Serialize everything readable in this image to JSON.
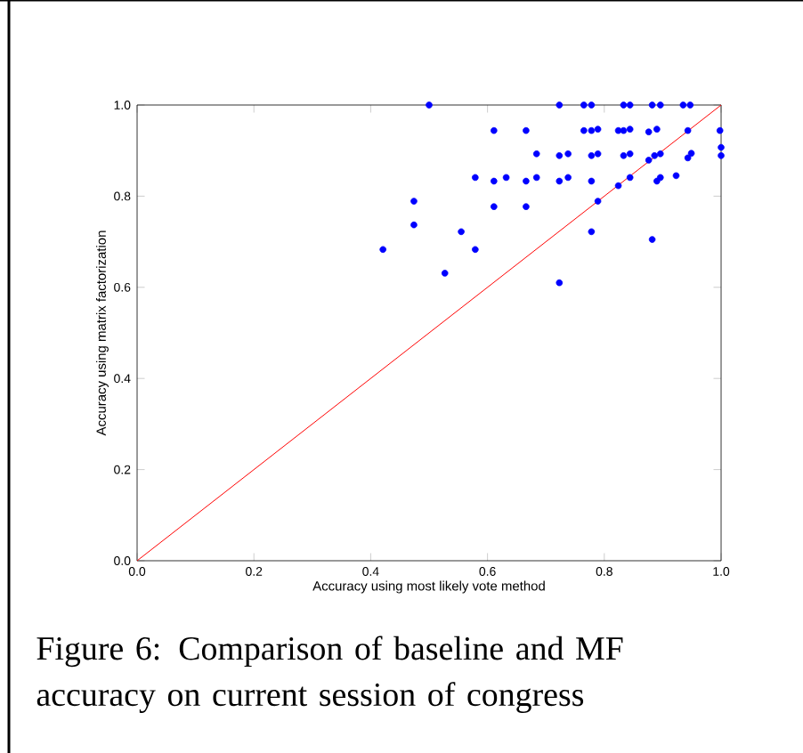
{
  "chart_data": {
    "type": "scatter",
    "xlabel": "Accuracy using most likely vote method",
    "ylabel": "Accuracy using matrix factorization",
    "annotations": [
      "Figure 6: Comparison of baseline and MF accuracy on current session of congress"
    ],
    "xlim": [
      0,
      1
    ],
    "ylim": [
      0,
      1
    ],
    "xticks": [
      {
        "value": 0,
        "label": "0.0"
      },
      {
        "value": 0.2,
        "label": "0.2"
      },
      {
        "value": 0.4,
        "label": "0.4"
      },
      {
        "value": 0.6,
        "label": "0.6"
      },
      {
        "value": 0.8,
        "label": "0.8"
      },
      {
        "value": 1,
        "label": "1.0"
      }
    ],
    "yticks": [
      {
        "value": 0,
        "label": "0.0"
      },
      {
        "value": 0.2,
        "label": "0.2"
      },
      {
        "value": 0.4,
        "label": "0.4"
      },
      {
        "value": 0.6,
        "label": "0.6"
      },
      {
        "value": 0.8,
        "label": "0.8"
      },
      {
        "value": 1,
        "label": "1.0"
      }
    ],
    "grid": false,
    "series": [
      {
        "color": "#0000ff",
        "marker": "circle",
        "x": [
          0.421,
          0.474,
          0.474,
          0.5,
          0.527,
          0.555,
          0.579,
          0.579,
          0.611,
          0.611,
          0.611,
          0.632,
          0.666,
          0.666,
          0.666,
          0.684,
          0.684,
          0.723,
          0.723,
          0.723,
          0.723,
          0.738,
          0.738,
          0.765,
          0.765,
          0.778,
          0.778,
          0.778,
          0.778,
          0.778,
          0.789,
          0.789,
          0.789,
          0.824,
          0.824,
          0.833,
          0.833,
          0.833,
          0.844,
          0.844,
          0.844,
          0.844,
          0.876,
          0.876,
          0.882,
          0.882,
          0.886,
          0.89,
          0.89,
          0.896,
          0.896,
          0.896,
          0.923,
          0.935,
          0.943,
          0.943,
          0.947,
          0.949,
          0.998,
          1.0,
          1.0
        ],
        "values": [
          0.683,
          0.789,
          0.737,
          1.0,
          0.631,
          0.722,
          0.841,
          0.683,
          0.944,
          0.833,
          0.777,
          0.841,
          0.944,
          0.833,
          0.777,
          0.893,
          0.841,
          1.0,
          0.889,
          0.833,
          0.61,
          0.893,
          0.841,
          1.0,
          0.944,
          1.0,
          0.944,
          0.889,
          0.833,
          0.722,
          0.947,
          0.893,
          0.789,
          0.823,
          0.944,
          1.0,
          0.944,
          0.889,
          1.0,
          0.947,
          0.893,
          0.841,
          0.879,
          0.941,
          1.0,
          0.705,
          0.889,
          0.947,
          0.833,
          0.893,
          0.841,
          1.0,
          0.845,
          1.0,
          0.944,
          0.884,
          1.0,
          0.894,
          0.944,
          0.907,
          0.889
        ]
      },
      {
        "type": "line",
        "color": "#ff0000",
        "marker": "none",
        "x": [
          0,
          1
        ],
        "values": [
          0,
          1
        ]
      }
    ]
  }
}
